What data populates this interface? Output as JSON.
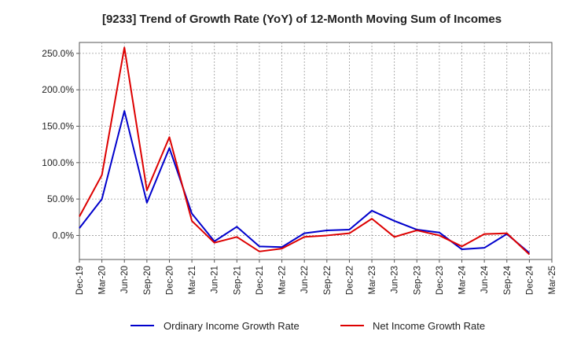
{
  "chart_data": {
    "type": "line",
    "title": "[9233]  Trend of Growth Rate (YoY) of 12-Month Moving Sum of Incomes",
    "xlabel": "",
    "ylabel": "",
    "x_ticks": [
      "Dec-19",
      "Mar-20",
      "Jun-20",
      "Sep-20",
      "Dec-20",
      "Mar-21",
      "Jun-21",
      "Sep-21",
      "Dec-21",
      "Mar-22",
      "Jun-22",
      "Sep-22",
      "Dec-22",
      "Mar-23",
      "Jun-23",
      "Sep-23",
      "Dec-23",
      "Mar-24",
      "Jun-24",
      "Sep-24",
      "Dec-24",
      "Mar-25"
    ],
    "y_ticks": [
      {
        "value": 250,
        "label": "250.0%"
      },
      {
        "value": 200,
        "label": "200.0%"
      },
      {
        "value": 150,
        "label": "150.0%"
      },
      {
        "value": 100,
        "label": "100.0%"
      },
      {
        "value": 50,
        "label": "50.0%"
      },
      {
        "value": 0,
        "label": "0.0%"
      }
    ],
    "ylim": [
      -33,
      265
    ],
    "grid": true,
    "legend_position": "bottom",
    "series": [
      {
        "name": "Ordinary Income Growth Rate",
        "color": "#0000cc",
        "points": [
          [
            "Dec-19",
            10
          ],
          [
            "Mar-20",
            50
          ],
          [
            "Jun-20",
            171
          ],
          [
            "Sep-20",
            45
          ],
          [
            "Dec-20",
            120
          ],
          [
            "Mar-21",
            30
          ],
          [
            "Jun-21",
            -8
          ],
          [
            "Sep-21",
            12
          ],
          [
            "Dec-21",
            -15
          ],
          [
            "Mar-22",
            -16
          ],
          [
            "Jun-22",
            3
          ],
          [
            "Sep-22",
            7
          ],
          [
            "Dec-22",
            8
          ],
          [
            "Mar-23",
            34
          ],
          [
            "Jun-23",
            20
          ],
          [
            "Sep-23",
            8
          ],
          [
            "Dec-23",
            4
          ],
          [
            "Mar-24",
            -19
          ],
          [
            "Jun-24",
            -17
          ],
          [
            "Sep-24",
            2
          ],
          [
            "Dec-24",
            -24
          ]
        ]
      },
      {
        "name": "Net Income Growth Rate",
        "color": "#dd0000",
        "points": [
          [
            "Dec-19",
            26
          ],
          [
            "Mar-20",
            83
          ],
          [
            "Jun-20",
            258
          ],
          [
            "Sep-20",
            62
          ],
          [
            "Dec-20",
            135
          ],
          [
            "Mar-21",
            20
          ],
          [
            "Jun-21",
            -10
          ],
          [
            "Sep-21",
            -2
          ],
          [
            "Dec-21",
            -22
          ],
          [
            "Mar-22",
            -18
          ],
          [
            "Jun-22",
            -2
          ],
          [
            "Sep-22",
            0
          ],
          [
            "Dec-22",
            3
          ],
          [
            "Mar-23",
            23
          ],
          [
            "Jun-23",
            -2
          ],
          [
            "Sep-23",
            7
          ],
          [
            "Dec-23",
            0
          ],
          [
            "Mar-24",
            -15
          ],
          [
            "Jun-24",
            2
          ],
          [
            "Sep-24",
            3
          ],
          [
            "Dec-24",
            -26
          ]
        ]
      }
    ]
  }
}
